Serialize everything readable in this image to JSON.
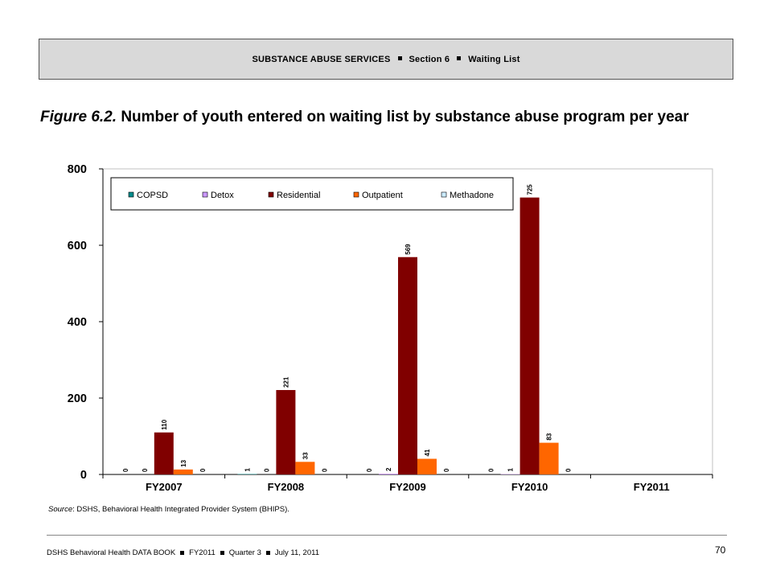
{
  "header": {
    "part1": "SUBSTANCE ABUSE SERVICES",
    "part2": "Section 6",
    "part3": "Waiting List"
  },
  "title": {
    "figure": "Figure 6.2.",
    "text": "Number of youth entered on waiting list by substance abuse program per year"
  },
  "source": {
    "label": "Source",
    "text": ": DSHS, Behavioral Health Integrated Provider System (BHIPS)."
  },
  "footer": {
    "part1": "DSHS Behavioral Health DATA BOOK",
    "part2": "FY2011",
    "part3": "Quarter 3",
    "part4": "July 11, 2011",
    "page": "70"
  },
  "chart_data": {
    "type": "bar",
    "categories": [
      "FY2007",
      "FY2008",
      "FY2009",
      "FY2010",
      "FY2011"
    ],
    "series": [
      {
        "name": "COPSD",
        "color": "#008b8b",
        "values": [
          0,
          1,
          0,
          0,
          null
        ],
        "labels": [
          "0",
          "1",
          "0",
          "0",
          ""
        ]
      },
      {
        "name": "Detox",
        "color": "#cc99ff",
        "values": [
          0,
          0,
          2,
          1,
          null
        ],
        "labels": [
          "0",
          "0",
          "2",
          "1",
          ""
        ]
      },
      {
        "name": "Residential",
        "color": "#800000",
        "values": [
          110,
          221,
          569,
          725,
          null
        ],
        "labels": [
          "110",
          "221",
          "569",
          "725",
          ""
        ]
      },
      {
        "name": "Outpatient",
        "color": "#ff6600",
        "values": [
          13,
          33,
          41,
          83,
          null
        ],
        "labels": [
          "13",
          "33",
          "41",
          "83",
          ""
        ]
      },
      {
        "name": "Methadone",
        "color": "#ccecff",
        "values": [
          0,
          0,
          0,
          0,
          null
        ],
        "labels": [
          "0",
          "0",
          "0",
          "0",
          ""
        ]
      }
    ],
    "yticks": [
      "0",
      "200",
      "400",
      "600",
      "800"
    ],
    "ylim": [
      0,
      800
    ],
    "grid": false,
    "legend_position": "top-left"
  }
}
